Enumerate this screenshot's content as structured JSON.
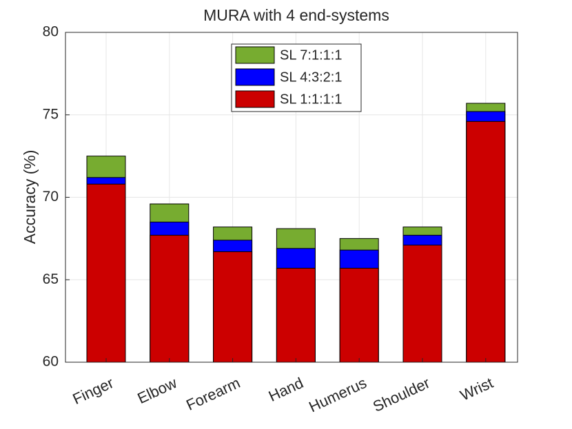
{
  "chart_data": {
    "type": "bar",
    "title": "MURA with 4 end-systems",
    "ylabel": "Accuracy (%)",
    "categories": [
      "Finger",
      "Elbow",
      "Forearm",
      "Hand",
      "Humerus",
      "Shoulder",
      "Wrist"
    ],
    "series": [
      {
        "name": "SL 7:1:1:1",
        "color": "#77ac30",
        "values": [
          72.5,
          69.6,
          68.2,
          68.1,
          67.5,
          68.2,
          75.7
        ]
      },
      {
        "name": "SL 4:3:2:1",
        "color": "#0000ff",
        "values": [
          71.2,
          68.5,
          67.4,
          66.9,
          66.8,
          67.7,
          75.2
        ]
      },
      {
        "name": "SL 1:1:1:1",
        "color": "#cc0000",
        "values": [
          70.8,
          67.7,
          66.7,
          65.7,
          65.7,
          67.1,
          74.6
        ]
      }
    ],
    "ylim": [
      60,
      80
    ],
    "yticks": [
      60,
      65,
      70,
      75,
      80
    ],
    "grid": true,
    "legend": "top"
  }
}
